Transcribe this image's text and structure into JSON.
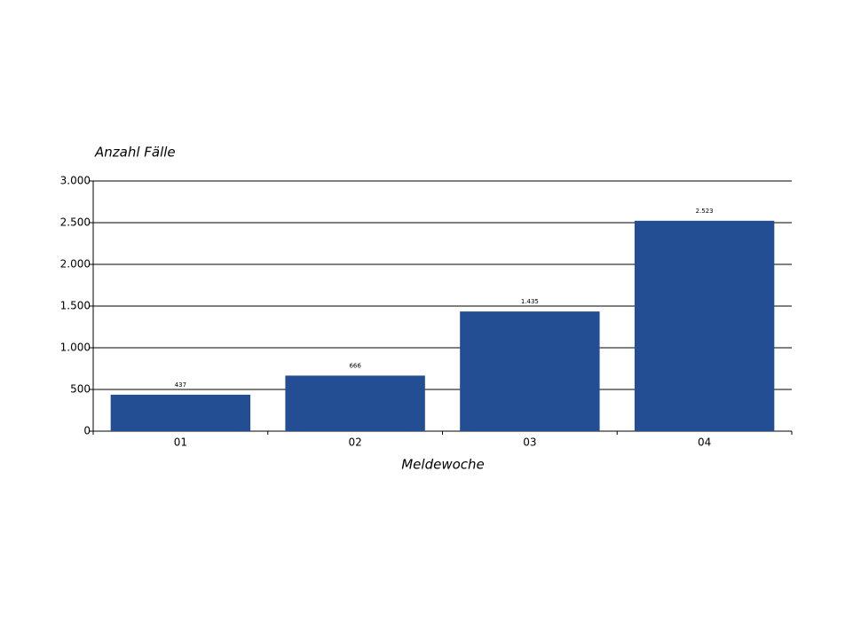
{
  "chart_data": {
    "type": "bar",
    "y_axis_title": "Anzahl Fälle",
    "x_axis_title": "Meldewoche",
    "categories": [
      "01",
      "02",
      "03",
      "04"
    ],
    "values": [
      437,
      666,
      1435,
      2523
    ],
    "value_labels": [
      "437",
      "666",
      "1.435",
      "2.523"
    ],
    "color": "#234e93",
    "ylim": [
      0,
      3000
    ],
    "yticks": [
      0,
      500,
      {
        "value": 1000,
        "label": "1.000"
      },
      {
        "value": 1500,
        "label": "1.500"
      },
      {
        "value": 2000,
        "label": "2.000"
      },
      {
        "value": 2500,
        "label": "2.500"
      },
      {
        "value": 3000,
        "label": "3.000"
      }
    ],
    "grid": true
  }
}
